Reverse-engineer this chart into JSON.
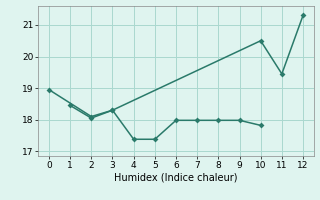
{
  "line1_x": [
    0,
    2,
    3,
    10,
    11,
    12
  ],
  "line1_y": [
    18.95,
    18.1,
    18.3,
    20.5,
    19.45,
    21.3
  ],
  "line2_x": [
    1,
    2,
    3,
    4,
    5,
    6,
    7,
    8,
    9,
    10
  ],
  "line2_y": [
    18.45,
    18.05,
    18.3,
    17.38,
    17.38,
    17.98,
    17.98,
    17.98,
    17.98,
    17.82
  ],
  "color": "#2a7a6a",
  "xlabel": "Humidex (Indice chaleur)",
  "ylim": [
    16.85,
    21.6
  ],
  "xlim": [
    -0.5,
    12.5
  ],
  "yticks": [
    17,
    18,
    19,
    20,
    21
  ],
  "xticks": [
    0,
    1,
    2,
    3,
    4,
    5,
    6,
    7,
    8,
    9,
    10,
    11,
    12
  ],
  "background_color": "#dff4ef",
  "grid_color": "#aad8cf",
  "markersize": 3.0,
  "linewidth": 1.1
}
